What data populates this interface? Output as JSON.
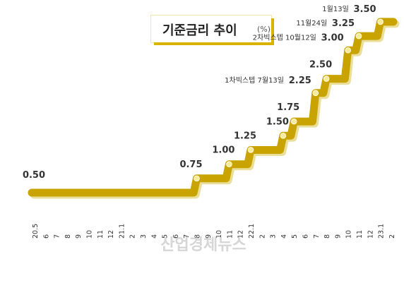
{
  "title": "기준금리 추이",
  "unit": "(%)",
  "watermark": "산업경제뉴스",
  "colors": {
    "line": "#c9a400",
    "marker": "#f8ec9a",
    "shadow": "#e9df9a"
  },
  "chart_data": {
    "type": "line",
    "x": [
      "20.5",
      "6",
      "7",
      "8",
      "9",
      "10",
      "11",
      "12",
      "21.1",
      "2",
      "3",
      "4",
      "5",
      "6",
      "7",
      "8",
      "9",
      "10",
      "11",
      "12",
      "22.1",
      "2",
      "3",
      "4",
      "5",
      "6",
      "7",
      "8",
      "9",
      "10",
      "11",
      "12",
      "23.1",
      "2"
    ],
    "series": [
      {
        "values": [
          0.5,
          0.5,
          0.5,
          0.5,
          0.5,
          0.5,
          0.5,
          0.5,
          0.5,
          0.5,
          0.5,
          0.5,
          0.5,
          0.5,
          0.5,
          0.75,
          0.75,
          0.75,
          1.0,
          1.0,
          1.25,
          1.25,
          1.25,
          1.5,
          1.75,
          1.75,
          2.25,
          2.5,
          2.5,
          3.0,
          3.25,
          3.25,
          3.5,
          3.5
        ]
      }
    ],
    "labels": [
      {
        "index": 0,
        "value": "0.50"
      },
      {
        "index": 15,
        "value": "0.75"
      },
      {
        "index": 18,
        "value": "1.00"
      },
      {
        "index": 20,
        "value": "1.25"
      },
      {
        "index": 23,
        "value": "1.50"
      },
      {
        "index": 24,
        "value": "1.75"
      },
      {
        "index": 26,
        "value": "2.25",
        "note": "1차빅스텝 7월13일"
      },
      {
        "index": 27,
        "value": "2.50"
      },
      {
        "index": 29,
        "value": "3.00",
        "note": "2차빅스텝 10월12일"
      },
      {
        "index": 30,
        "value": "3.25",
        "note": "11월24일"
      },
      {
        "index": 32,
        "value": "3.50",
        "note": "1월13일"
      }
    ],
    "ylim": [
      0.3,
      3.7
    ],
    "grid": false,
    "legend": "none"
  }
}
